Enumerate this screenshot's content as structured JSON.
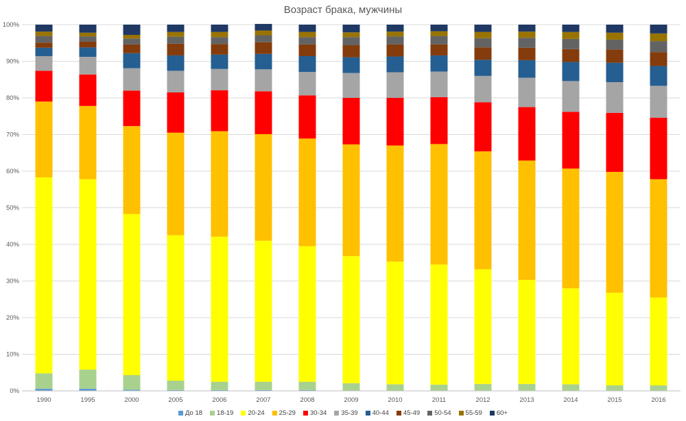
{
  "chart_data": {
    "type": "bar",
    "stacked": true,
    "percent": true,
    "title": "Возраст брака, мужчины",
    "xlabel": "",
    "ylabel": "",
    "ylim": [
      0,
      100
    ],
    "yticks": [
      "0%",
      "10%",
      "20%",
      "30%",
      "40%",
      "50%",
      "60%",
      "70%",
      "80%",
      "90%",
      "100%"
    ],
    "grid": true,
    "legend_position": "bottom",
    "categories": [
      "1990",
      "1995",
      "2000",
      "2005",
      "2006",
      "2007",
      "2008",
      "2009",
      "2010",
      "2011",
      "2012",
      "2013",
      "2014",
      "2015",
      "2016"
    ],
    "series": [
      {
        "name": "До 18",
        "color": "#5b9bd5",
        "values": [
          0.6,
          0.6,
          0.3,
          0.2,
          0.2,
          0.2,
          0.2,
          0.1,
          0.1,
          0.1,
          0.1,
          0.1,
          0.1,
          0.1,
          0.1
        ]
      },
      {
        "name": "18-19",
        "color": "#a9d18e",
        "values": [
          4.2,
          5.2,
          4.0,
          2.6,
          2.3,
          2.3,
          2.3,
          2.0,
          1.7,
          1.6,
          1.8,
          1.8,
          1.7,
          1.4,
          1.4
        ]
      },
      {
        "name": "20-24",
        "color": "#ffff00",
        "values": [
          53.5,
          52.0,
          44.0,
          39.7,
          39.6,
          38.5,
          37.0,
          34.7,
          33.5,
          32.8,
          31.3,
          28.4,
          26.2,
          25.3,
          24.0
        ]
      },
      {
        "name": "25-29",
        "color": "#ffc000",
        "values": [
          20.7,
          20.0,
          24.0,
          28.0,
          28.8,
          29.1,
          29.4,
          30.5,
          31.7,
          32.9,
          32.2,
          32.6,
          32.7,
          33.0,
          32.3
        ]
      },
      {
        "name": "30-34",
        "color": "#ff0000",
        "values": [
          8.4,
          8.6,
          9.7,
          11.0,
          11.2,
          11.7,
          11.8,
          12.7,
          13.0,
          12.8,
          13.4,
          14.6,
          15.5,
          16.1,
          16.8
        ]
      },
      {
        "name": "35-39",
        "color": "#a5a5a5",
        "values": [
          4.0,
          4.8,
          6.1,
          5.9,
          5.8,
          6.0,
          6.4,
          6.8,
          7.0,
          7.0,
          7.2,
          8.0,
          8.4,
          8.4,
          8.7
        ]
      },
      {
        "name": "40-44",
        "color": "#255e91",
        "values": [
          2.3,
          2.6,
          4.1,
          4.2,
          3.9,
          4.2,
          4.3,
          4.3,
          4.3,
          4.4,
          4.4,
          4.8,
          5.2,
          5.3,
          5.4
        ]
      },
      {
        "name": "45-49",
        "color": "#843c0c",
        "values": [
          1.4,
          1.6,
          2.4,
          3.2,
          2.9,
          3.2,
          3.2,
          3.3,
          3.3,
          3.0,
          3.4,
          3.4,
          3.5,
          3.6,
          3.8
        ]
      },
      {
        "name": "50-54",
        "color": "#636363",
        "values": [
          1.8,
          1.4,
          1.6,
          1.9,
          1.9,
          1.9,
          2.0,
          2.2,
          2.2,
          2.3,
          2.5,
          2.7,
          2.8,
          2.7,
          3.0
        ]
      },
      {
        "name": "55-59",
        "color": "#997300",
        "values": [
          1.2,
          1.0,
          1.0,
          1.3,
          1.4,
          1.3,
          1.4,
          1.3,
          1.3,
          1.3,
          1.7,
          1.7,
          1.9,
          1.9,
          2.1
        ]
      },
      {
        "name": "60+",
        "color": "#1f3864",
        "values": [
          1.9,
          2.2,
          2.8,
          2.0,
          2.0,
          1.8,
          2.0,
          2.1,
          1.9,
          1.8,
          2.0,
          1.9,
          2.0,
          2.2,
          2.4
        ]
      }
    ]
  }
}
